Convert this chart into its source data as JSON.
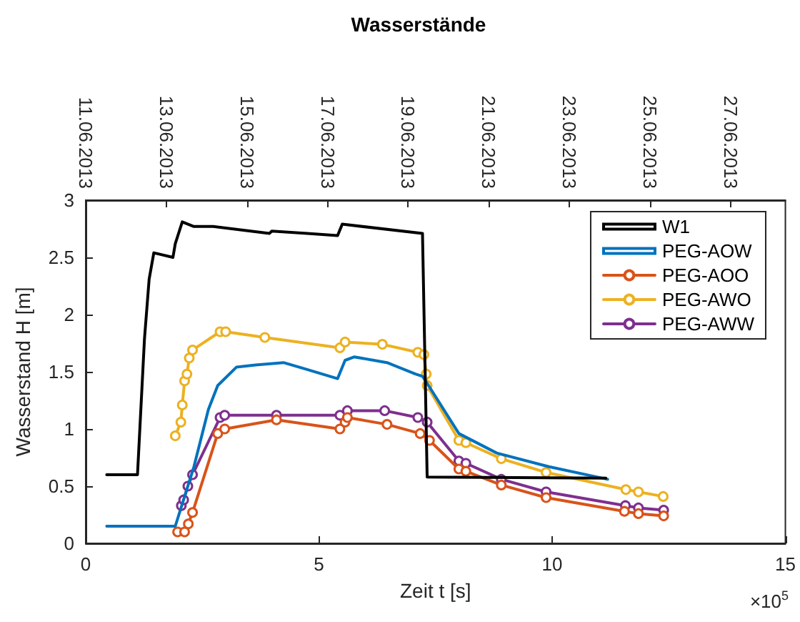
{
  "chart_data": {
    "type": "line",
    "title": "Wasserstände",
    "xlabel": "Zeit t [s]",
    "ylabel": "Wasserstand H [m]",
    "annotations": [
      "×10$^{5}$"
    ],
    "xlim": [
      0,
      15
    ],
    "xticks": [
      0,
      5,
      10,
      15
    ],
    "ylim": [
      0,
      3
    ],
    "yticks": [
      0,
      0.5,
      1,
      1.5,
      2,
      2.5,
      3
    ],
    "x2lim": [
      "2013-06-11T00:00",
      "2013-06-28T08:40"
    ],
    "x2ticks": [
      {
        "value": "2013-06-11",
        "label": "11.06.2013"
      },
      {
        "value": "2013-06-13",
        "label": "13.06.2013"
      },
      {
        "value": "2013-06-15",
        "label": "15.06.2013"
      },
      {
        "value": "2013-06-17",
        "label": "17.06.2013"
      },
      {
        "value": "2013-06-19",
        "label": "19.06.2013"
      },
      {
        "value": "2013-06-21",
        "label": "21.06.2013"
      },
      {
        "value": "2013-06-23",
        "label": "23.06.2013"
      },
      {
        "value": "2013-06-25",
        "label": "25.06.2013"
      },
      {
        "value": "2013-06-27",
        "label": "27.06.2013"
      }
    ],
    "grid": false,
    "legend": "top right",
    "line_style": "solid",
    "series": [
      {
        "name": "W1",
        "color": "#000000",
        "marker": "none",
        "x": [
          0.45,
          1.11,
          1.26,
          1.36,
          1.46,
          1.87,
          1.92,
          2.07,
          2.32,
          2.73,
          3.94,
          3.99,
          4.75,
          5.4,
          5.5,
          7.22,
          7.32,
          11.15
        ],
        "values": [
          0.6,
          0.6,
          1.79,
          2.31,
          2.54,
          2.5,
          2.62,
          2.81,
          2.77,
          2.77,
          2.71,
          2.73,
          2.71,
          2.69,
          2.79,
          2.71,
          0.58,
          0.57
        ]
      },
      {
        "name": "PEG-AOW",
        "color": "#0072bd",
        "marker": "none",
        "x": [
          0.45,
          1.92,
          2.32,
          2.63,
          2.83,
          3.23,
          3.64,
          4.24,
          4.75,
          5.4,
          5.56,
          5.76,
          6.46,
          7.07,
          7.22,
          7.35,
          8.0,
          8.81,
          9.93,
          11.19
        ],
        "values": [
          0.15,
          0.15,
          0.67,
          1.17,
          1.38,
          1.54,
          1.56,
          1.58,
          1.52,
          1.44,
          1.6,
          1.63,
          1.58,
          1.48,
          1.46,
          1.38,
          0.96,
          0.79,
          0.67,
          0.56
        ]
      },
      {
        "name": "PEG-AOO",
        "color": "#d95319",
        "marker": "circle",
        "x": [
          1.97,
          2.12,
          2.2,
          2.29,
          2.83,
          2.98,
          4.09,
          5.45,
          5.56,
          5.61,
          6.46,
          7.17,
          7.37,
          8.0,
          8.15,
          8.91,
          9.87,
          11.55,
          11.85,
          12.39
        ],
        "values": [
          0.1,
          0.1,
          0.17,
          0.27,
          0.96,
          1.0,
          1.08,
          1.0,
          1.06,
          1.1,
          1.04,
          0.96,
          0.9,
          0.65,
          0.63,
          0.51,
          0.4,
          0.28,
          0.26,
          0.24
        ]
      },
      {
        "name": "PEG-AWO",
        "color": "#edb120",
        "marker": "circle",
        "x": [
          1.92,
          2.04,
          2.07,
          2.12,
          2.17,
          2.22,
          2.29,
          2.88,
          3.0,
          3.84,
          5.45,
          5.56,
          6.36,
          7.12,
          7.25,
          7.3,
          7.32,
          8.0,
          8.15,
          8.91,
          9.87,
          11.58,
          11.85,
          12.38
        ],
        "values": [
          0.94,
          1.06,
          1.21,
          1.42,
          1.48,
          1.62,
          1.69,
          1.85,
          1.85,
          1.8,
          1.71,
          1.76,
          1.74,
          1.67,
          1.65,
          1.48,
          1.38,
          0.9,
          0.88,
          0.74,
          0.62,
          0.47,
          0.45,
          0.41
        ]
      },
      {
        "name": "PEG-AWW",
        "color": "#7e2f8e",
        "marker": "circle",
        "x": [
          2.05,
          2.1,
          2.19,
          2.29,
          2.88,
          2.98,
          4.09,
          5.45,
          5.61,
          6.41,
          7.12,
          7.32,
          8.0,
          8.15,
          8.91,
          9.87,
          11.57,
          11.85,
          12.39
        ],
        "values": [
          0.33,
          0.38,
          0.5,
          0.6,
          1.1,
          1.12,
          1.12,
          1.12,
          1.16,
          1.16,
          1.1,
          1.06,
          0.72,
          0.7,
          0.56,
          0.45,
          0.33,
          0.31,
          0.29
        ]
      }
    ]
  }
}
